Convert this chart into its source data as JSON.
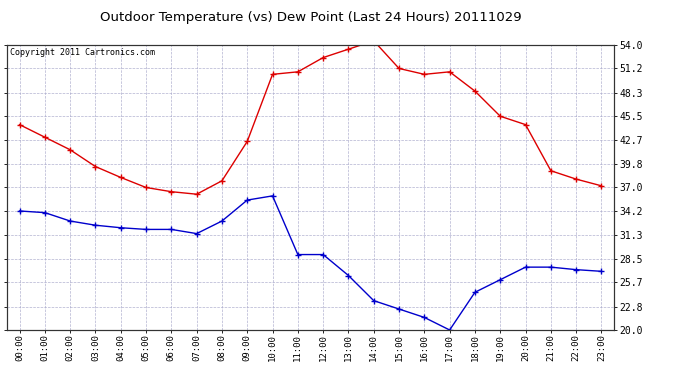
{
  "title": "Outdoor Temperature (vs) Dew Point (Last 24 Hours) 20111029",
  "copyright_text": "Copyright 2011 Cartronics.com",
  "x_labels": [
    "00:00",
    "01:00",
    "02:00",
    "03:00",
    "04:00",
    "05:00",
    "06:00",
    "07:00",
    "08:00",
    "09:00",
    "10:00",
    "11:00",
    "12:00",
    "13:00",
    "14:00",
    "15:00",
    "16:00",
    "17:00",
    "18:00",
    "19:00",
    "20:00",
    "21:00",
    "22:00",
    "23:00"
  ],
  "temp_data": [
    44.5,
    43.0,
    41.5,
    39.5,
    38.2,
    37.0,
    36.5,
    36.2,
    37.8,
    42.5,
    50.5,
    50.8,
    52.5,
    53.5,
    54.5,
    51.2,
    50.5,
    50.8,
    48.5,
    45.5,
    44.5,
    39.0,
    38.0,
    37.2
  ],
  "dew_data": [
    34.2,
    34.0,
    33.0,
    32.5,
    32.2,
    32.0,
    32.0,
    31.5,
    33.0,
    35.5,
    36.0,
    29.0,
    29.0,
    26.5,
    23.5,
    22.5,
    21.5,
    20.0,
    24.5,
    26.0,
    27.5,
    27.5,
    27.2,
    27.0
  ],
  "temp_color": "#dd0000",
  "dew_color": "#0000cc",
  "bg_color": "#ffffff",
  "plot_bg_color": "#ffffff",
  "grid_color": "#aaaacc",
  "ylim_min": 20.0,
  "ylim_max": 54.0,
  "y_ticks": [
    20.0,
    22.8,
    25.7,
    28.5,
    31.3,
    34.2,
    37.0,
    39.8,
    42.7,
    45.5,
    48.3,
    51.2,
    54.0
  ],
  "title_fontsize": 9.5,
  "copyright_fontsize": 6.0,
  "tick_fontsize": 7.0,
  "xtick_fontsize": 6.5
}
